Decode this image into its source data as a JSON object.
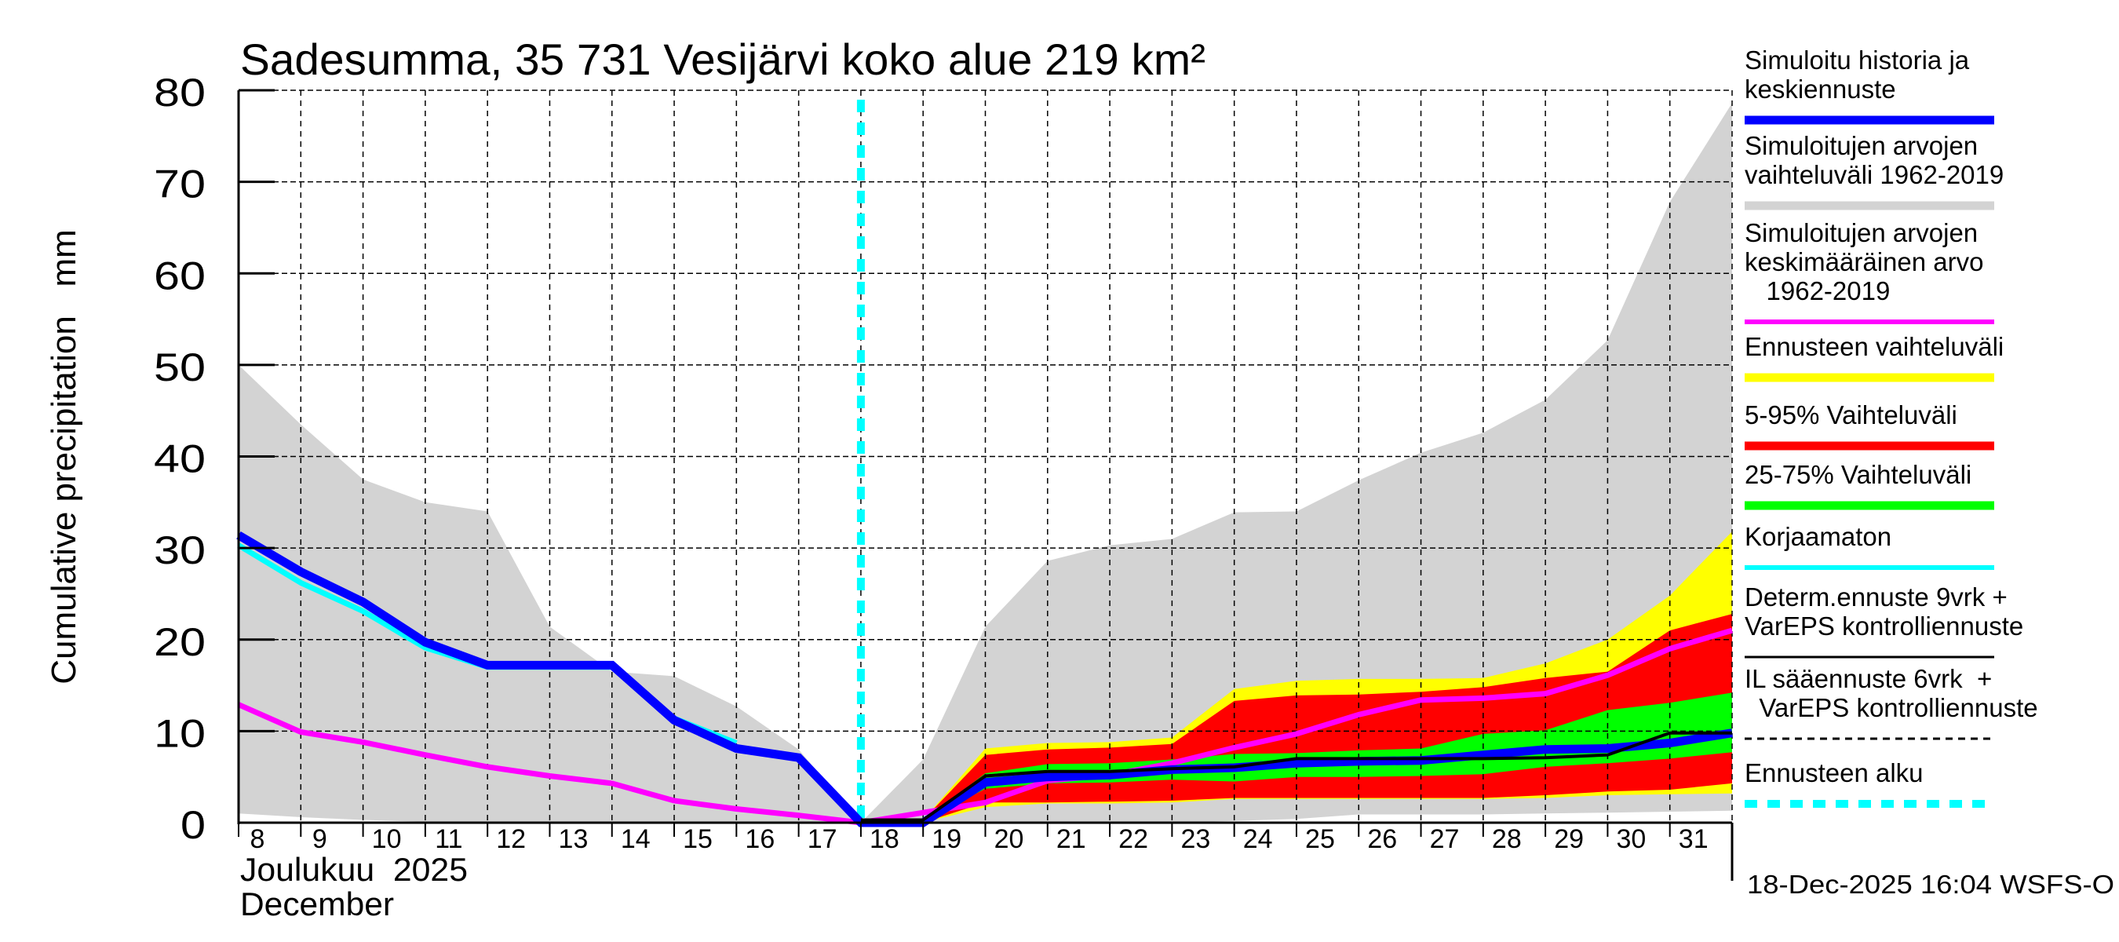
{
  "chart_data": {
    "type": "area",
    "title": "Sadesumma, 35 731 Vesijärvi koko alue 219 km²",
    "ylabel": "Cumulative precipitation   mm",
    "xlabel_lines": [
      "Joulukuu  2025",
      "December"
    ],
    "ylim": [
      0,
      80
    ],
    "yticks": [
      0,
      10,
      20,
      30,
      40,
      50,
      60,
      70,
      80
    ],
    "xlim": [
      8,
      32
    ],
    "xtick_labels": [
      "8",
      "9",
      "10",
      "11",
      "12",
      "13",
      "14",
      "15",
      "16",
      "17",
      "18",
      "19",
      "20",
      "21",
      "22",
      "23",
      "24",
      "25",
      "26",
      "27",
      "28",
      "29",
      "30",
      "31"
    ],
    "grid": true,
    "legend_position": "right",
    "forecast_start_day": 18,
    "timestamp": "18-Dec-2025 16:04 WSFS-O",
    "colors": {
      "grey": "#d3d3d3",
      "yellow": "#ffff00",
      "red": "#ff0000",
      "green": "#00ff00",
      "blue": "#0000ff",
      "cyan": "#00ffff",
      "magenta": "#ff00ff",
      "black": "#000000"
    },
    "bands": [
      {
        "name": "Simuloitujen arvojen vaihteluväli 1962-2019",
        "color": "#d3d3d3",
        "x": [
          8,
          9,
          10,
          11,
          12,
          13,
          14,
          15,
          16,
          17,
          18,
          19,
          20,
          21,
          22,
          23,
          24,
          25,
          26,
          27,
          28,
          29,
          30,
          31,
          32
        ],
        "upper": [
          50,
          43.5,
          37.5,
          35,
          34,
          21.4,
          16.5,
          16,
          12.7,
          8,
          0,
          6.9,
          21.4,
          28.6,
          30.3,
          31,
          33.9,
          34,
          37.4,
          40.4,
          42.6,
          46.2,
          52.7,
          67.8,
          78.6
        ],
        "lower": [
          1.0,
          0.6,
          0.3,
          0.1,
          0,
          0,
          0,
          0,
          0,
          0,
          0,
          0,
          0,
          0,
          0,
          0,
          0.2,
          0.4,
          0.9,
          0.9,
          0.9,
          1.0,
          1.1,
          1.2,
          1.3
        ]
      },
      {
        "name": "Ennusteen vaihteluväli",
        "color": "#ffff00",
        "x": [
          18,
          19,
          20,
          21,
          22,
          23,
          24,
          25,
          26,
          27,
          28,
          29,
          30,
          31,
          32
        ],
        "upper": [
          0,
          0.3,
          8.1,
          8.7,
          8.8,
          9.3,
          14.6,
          15.5,
          15.7,
          15.7,
          15.8,
          17.4,
          20.0,
          24.8,
          31.8
        ],
        "lower": [
          0,
          0,
          1.7,
          2.1,
          2.1,
          2.2,
          2.6,
          2.6,
          2.6,
          2.6,
          2.6,
          2.7,
          3.0,
          3.1,
          3.2
        ]
      },
      {
        "name": "5-95% Vaihteluväli",
        "color": "#ff0000",
        "x": [
          18,
          19,
          20,
          21,
          22,
          23,
          24,
          25,
          26,
          27,
          28,
          29,
          30,
          31,
          32
        ],
        "upper": [
          0,
          0.3,
          7.4,
          8.0,
          8.2,
          8.6,
          13.3,
          13.9,
          14.0,
          14.3,
          14.8,
          15.8,
          16.5,
          21.0,
          22.8
        ],
        "lower": [
          0,
          0,
          2.2,
          2.2,
          2.3,
          2.4,
          2.7,
          2.7,
          2.7,
          2.7,
          2.7,
          3.0,
          3.4,
          3.6,
          4.3
        ]
      },
      {
        "name": "25-75% Vaihteluväli",
        "color": "#00ff00",
        "x": [
          18,
          19,
          20,
          21,
          22,
          23,
          24,
          25,
          26,
          27,
          28,
          29,
          30,
          31,
          32
        ],
        "upper": [
          0,
          0.2,
          5.4,
          6.4,
          6.5,
          6.9,
          7.5,
          7.6,
          7.9,
          8.1,
          9.7,
          10.1,
          12.3,
          13.1,
          14.2
        ],
        "lower": [
          0,
          0.1,
          3.7,
          4.3,
          4.4,
          4.7,
          4.5,
          5.0,
          5.0,
          5.1,
          5.3,
          6.1,
          6.5,
          7.0,
          7.7
        ]
      }
    ],
    "series": [
      {
        "name": "Simuloitujen arvojen keskimääräinen arvo 1962-2019",
        "color": "#ff00ff",
        "x": [
          8,
          9,
          10,
          11,
          12,
          13,
          14,
          15,
          16,
          17,
          18,
          19,
          20,
          21,
          22,
          23,
          24,
          25,
          26,
          27,
          28,
          29,
          30,
          31,
          32
        ],
        "values": [
          12.9,
          9.9,
          8.8,
          7.4,
          6.1,
          5.1,
          4.3,
          2.4,
          1.5,
          0.8,
          0,
          1.1,
          2.2,
          4.6,
          5.2,
          6.5,
          8.2,
          9.7,
          11.8,
          13.4,
          13.6,
          14.1,
          16.1,
          19.0,
          21.0
        ]
      },
      {
        "name": "Korjaamaton",
        "color": "#00ffff",
        "x": [
          8,
          9,
          10,
          11,
          12,
          13,
          14,
          15,
          16
        ],
        "values": [
          30.3,
          26.2,
          23.1,
          19.1,
          17.0,
          17.0,
          17.0,
          11.4,
          8.7
        ]
      },
      {
        "name": "Simuloitu historia ja keskiennuste",
        "color": "#0000ff",
        "x": [
          8,
          9,
          10,
          11,
          12,
          13,
          14,
          15,
          16,
          17,
          18,
          19,
          20,
          21,
          22,
          23,
          24,
          25,
          26,
          27,
          28,
          29,
          30,
          31,
          32
        ],
        "values": [
          31.4,
          27.4,
          24.1,
          19.7,
          17.2,
          17.2,
          17.2,
          11.2,
          8.1,
          7.1,
          0,
          0,
          4.4,
          5.0,
          5.2,
          5.8,
          6.0,
          6.5,
          6.7,
          6.8,
          7.4,
          8.0,
          8.1,
          8.7,
          9.8
        ]
      },
      {
        "name": "Determ.ennuste 9vrk + VarEPS kontrolliennuste",
        "color": "#000000",
        "x": [
          18,
          19,
          20,
          21,
          22,
          23,
          24,
          25,
          26,
          27,
          28,
          29,
          30,
          31,
          32
        ],
        "values": [
          0.3,
          0.3,
          5.1,
          5.6,
          5.6,
          5.9,
          6.1,
          7.0,
          7.0,
          7.0,
          7.0,
          7.1,
          7.4,
          9.8,
          9.8
        ]
      }
    ],
    "legend": [
      {
        "label_lines": [
          "Simuloitu historia ja",
          "keskiennuste"
        ],
        "color": "#0000ff",
        "style": "thick"
      },
      {
        "label_lines": [
          "Simuloitujen arvojen",
          "vaihteluväli 1962-2019"
        ],
        "color": "#d3d3d3",
        "style": "thick"
      },
      {
        "label_lines": [
          "Simuloitujen arvojen",
          "keskimääräinen arvo",
          "   1962-2019"
        ],
        "color": "#ff00ff",
        "style": "medium"
      },
      {
        "label_lines": [
          "Ennusteen vaihteluväli"
        ],
        "color": "#ffff00",
        "style": "thick"
      },
      {
        "label_lines": [
          "5-95% Vaihteluväli"
        ],
        "color": "#ff0000",
        "style": "thick"
      },
      {
        "label_lines": [
          "25-75% Vaihteluväli"
        ],
        "color": "#00ff00",
        "style": "thick"
      },
      {
        "label_lines": [
          "Korjaamaton"
        ],
        "color": "#00ffff",
        "style": "medium"
      },
      {
        "label_lines": [
          "Determ.ennuste 9vrk +",
          "VarEPS kontrolliennuste"
        ],
        "color": "#000000",
        "style": "thin"
      },
      {
        "label_lines": [
          "IL sääennuste 6vrk  +",
          "  VarEPS kontrolliennuste"
        ],
        "color": "#000000",
        "style": "dashed"
      },
      {
        "label_lines": [
          "Ennusteen alku"
        ],
        "color": "#00ffff",
        "style": "dotted-thick"
      }
    ]
  }
}
